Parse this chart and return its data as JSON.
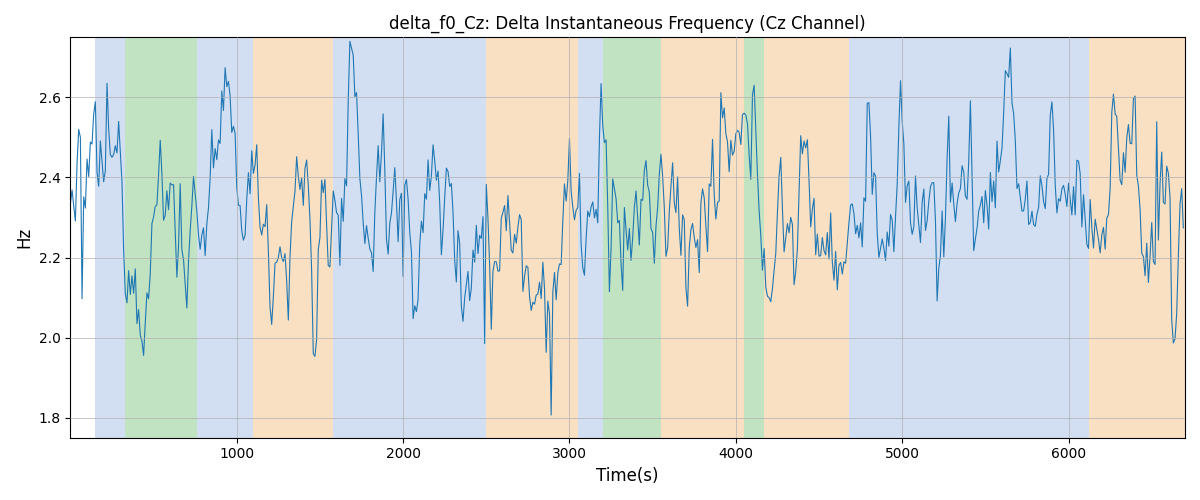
{
  "title": "delta_f0_Cz: Delta Instantaneous Frequency (Cz Channel)",
  "xlabel": "Time(s)",
  "ylabel": "Hz",
  "xlim": [
    0,
    6700
  ],
  "ylim": [
    1.75,
    2.75
  ],
  "yticks": [
    1.8,
    2.0,
    2.2,
    2.4,
    2.6
  ],
  "xticks": [
    1000,
    2000,
    3000,
    4000,
    5000,
    6000
  ],
  "line_color": "#1f77b4",
  "line_width": 0.8,
  "seed": 12345,
  "n_points": 670,
  "dt": 10,
  "base_freq": 2.32,
  "noise_std": 0.07,
  "regions": [
    {
      "start": 150,
      "end": 330,
      "color": "#aec6e8",
      "alpha": 0.55
    },
    {
      "start": 330,
      "end": 760,
      "color": "#90cc90",
      "alpha": 0.55
    },
    {
      "start": 760,
      "end": 1100,
      "color": "#aec6e8",
      "alpha": 0.55
    },
    {
      "start": 1100,
      "end": 1580,
      "color": "#f5c890",
      "alpha": 0.55
    },
    {
      "start": 1580,
      "end": 2500,
      "color": "#aec6e8",
      "alpha": 0.55
    },
    {
      "start": 2500,
      "end": 3050,
      "color": "#f5c890",
      "alpha": 0.55
    },
    {
      "start": 3050,
      "end": 3200,
      "color": "#aec6e8",
      "alpha": 0.55
    },
    {
      "start": 3200,
      "end": 3550,
      "color": "#90cc90",
      "alpha": 0.55
    },
    {
      "start": 3550,
      "end": 4050,
      "color": "#f5c890",
      "alpha": 0.55
    },
    {
      "start": 4050,
      "end": 4170,
      "color": "#90cc90",
      "alpha": 0.55
    },
    {
      "start": 4170,
      "end": 4680,
      "color": "#f5c890",
      "alpha": 0.55
    },
    {
      "start": 4680,
      "end": 6120,
      "color": "#aec6e8",
      "alpha": 0.55
    },
    {
      "start": 6120,
      "end": 6700,
      "color": "#f5c890",
      "alpha": 0.55
    }
  ]
}
